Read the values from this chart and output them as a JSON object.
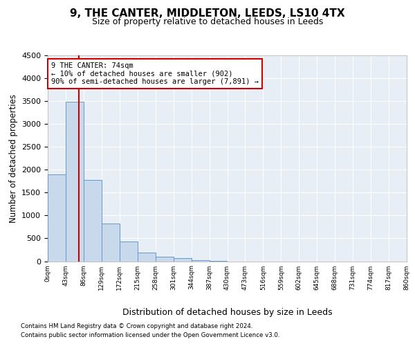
{
  "title": "9, THE CANTER, MIDDLETON, LEEDS, LS10 4TX",
  "subtitle": "Size of property relative to detached houses in Leeds",
  "xlabel": "Distribution of detached houses by size in Leeds",
  "ylabel": "Number of detached properties",
  "bar_color": "#c9d9ec",
  "bar_edgecolor": "#6699cc",
  "background_color": "#e8eef5",
  "property_size": 74,
  "property_line_color": "#cc0000",
  "annotation_text": "9 THE CANTER: 74sqm\n← 10% of detached houses are smaller (902)\n90% of semi-detached houses are larger (7,891) →",
  "annotation_box_color": "#cc0000",
  "bins_start": [
    0,
    43,
    86,
    129,
    172,
    215,
    258,
    301,
    344,
    387,
    430,
    473,
    516,
    559,
    602,
    645,
    688,
    731,
    774,
    817
  ],
  "bin_width": 43,
  "bar_heights": [
    1900,
    3480,
    1780,
    830,
    430,
    185,
    95,
    65,
    30,
    10,
    0,
    0,
    0,
    0,
    0,
    0,
    0,
    0,
    0,
    0
  ],
  "ylim": [
    0,
    4500
  ],
  "yticks": [
    0,
    500,
    1000,
    1500,
    2000,
    2500,
    3000,
    3500,
    4000,
    4500
  ],
  "footer_line1": "Contains HM Land Registry data © Crown copyright and database right 2024.",
  "footer_line2": "Contains public sector information licensed under the Open Government Licence v3.0.",
  "tick_labels": [
    "0sqm",
    "43sqm",
    "86sqm",
    "129sqm",
    "172sqm",
    "215sqm",
    "258sqm",
    "301sqm",
    "344sqm",
    "387sqm",
    "430sqm",
    "473sqm",
    "516sqm",
    "559sqm",
    "602sqm",
    "645sqm",
    "688sqm",
    "731sqm",
    "774sqm",
    "817sqm",
    "860sqm"
  ]
}
